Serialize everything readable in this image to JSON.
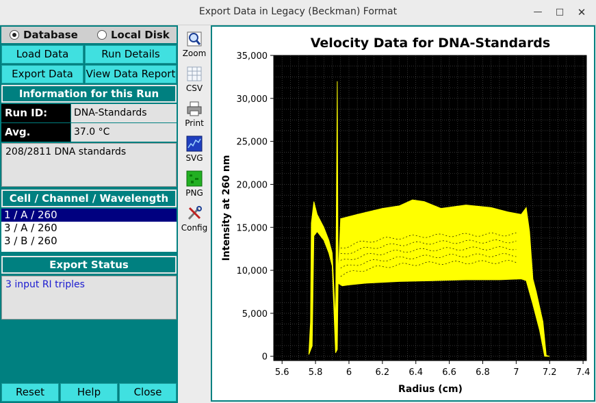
{
  "window": {
    "title": "Export Data in Legacy (Beckman) Format"
  },
  "source": {
    "database_label": "Database",
    "local_disk_label": "Local Disk",
    "selected": "database"
  },
  "buttons": {
    "load_data": "Load Data",
    "run_details": "Run Details",
    "export_data": "Export Data",
    "view_report": "View Data Report",
    "reset": "Reset",
    "help": "Help",
    "close": "Close"
  },
  "run_info": {
    "header": "Information for this Run",
    "run_id_label": "Run ID:",
    "run_id": "DNA-Standards",
    "temp_label": "Avg. Temp.:",
    "temp": "37.0 °C",
    "description": "208/2811 DNA standards"
  },
  "cells": {
    "header": "Cell / Channel / Wavelength",
    "items": [
      "1 / A / 260",
      "3 / A / 260",
      "3 / B / 260"
    ],
    "selected_index": 0
  },
  "export_status": {
    "header": "Export Status",
    "message": "3 input RI triples"
  },
  "toolbar": [
    {
      "label": "Zoom",
      "icon": "zoom-icon"
    },
    {
      "label": "CSV",
      "icon": "csv-icon"
    },
    {
      "label": "Print",
      "icon": "printer-icon"
    },
    {
      "label": "SVG",
      "icon": "svg-icon"
    },
    {
      "label": "PNG",
      "icon": "png-icon"
    },
    {
      "label": "Config",
      "icon": "config-icon"
    }
  ],
  "colors": {
    "panel": "#008080",
    "button": "#40e0e0",
    "plot_bg": "#000000",
    "trace": "#ffff00",
    "selection": "#000080"
  },
  "chart_data": {
    "type": "line",
    "title": "Velocity Data for DNA-Standards",
    "xlabel": "Radius (cm)",
    "ylabel": "Intensity at 260 nm",
    "xlim": [
      5.55,
      7.42
    ],
    "ylim": [
      -500,
      35000
    ],
    "x_ticks": [
      5.6,
      5.8,
      6,
      6.2,
      6.4,
      6.6,
      6.8,
      7,
      7.2,
      7.4
    ],
    "x_tick_labels": [
      "5.6",
      "5.8",
      "6",
      "6.2",
      "6.4",
      "6.6",
      "6.8",
      "7",
      "7.2",
      "7.4"
    ],
    "y_ticks": [
      0,
      5000,
      10000,
      15000,
      20000,
      25000,
      30000,
      35000
    ],
    "y_tick_labels": [
      "0",
      "5,000",
      "10,000",
      "15,000",
      "20,000",
      "25,000",
      "30,000",
      "35,000"
    ],
    "grid": true,
    "series_envelope": {
      "upper": [
        [
          5.76,
          200
        ],
        [
          5.77,
          4000
        ],
        [
          5.775,
          15500
        ],
        [
          5.79,
          18000
        ],
        [
          5.81,
          16500
        ],
        [
          5.85,
          15000
        ],
        [
          5.88,
          13500
        ],
        [
          5.9,
          12000
        ],
        [
          5.92,
          4000
        ],
        [
          5.93,
          32000
        ],
        [
          5.935,
          9000
        ],
        [
          5.95,
          16000
        ],
        [
          6.05,
          16500
        ],
        [
          6.2,
          17200
        ],
        [
          6.3,
          17500
        ],
        [
          6.38,
          18200
        ],
        [
          6.45,
          18000
        ],
        [
          6.55,
          17200
        ],
        [
          6.7,
          17600
        ],
        [
          6.85,
          17300
        ],
        [
          6.95,
          16800
        ],
        [
          7.03,
          16500
        ],
        [
          7.06,
          17300
        ],
        [
          7.08,
          14500
        ],
        [
          7.1,
          9000
        ],
        [
          7.12,
          7500
        ],
        [
          7.16,
          4000
        ],
        [
          7.18,
          100
        ]
      ],
      "lower": [
        [
          5.76,
          200
        ],
        [
          5.78,
          1200
        ],
        [
          5.79,
          14000
        ],
        [
          5.81,
          14500
        ],
        [
          5.85,
          13500
        ],
        [
          5.88,
          12000
        ],
        [
          5.9,
          10500
        ],
        [
          5.92,
          400
        ],
        [
          5.93,
          800
        ],
        [
          5.935,
          8500
        ],
        [
          5.96,
          8200
        ],
        [
          6.0,
          8300
        ],
        [
          6.1,
          8500
        ],
        [
          6.3,
          8700
        ],
        [
          6.5,
          8800
        ],
        [
          6.7,
          8900
        ],
        [
          6.9,
          8900
        ],
        [
          7.03,
          9000
        ],
        [
          7.06,
          8800
        ],
        [
          7.1,
          6000
        ],
        [
          7.14,
          3000
        ],
        [
          7.17,
          0
        ],
        [
          7.2,
          0
        ]
      ]
    },
    "inner_curves": [
      11000,
      11800,
      12600,
      13400,
      14200
    ]
  }
}
